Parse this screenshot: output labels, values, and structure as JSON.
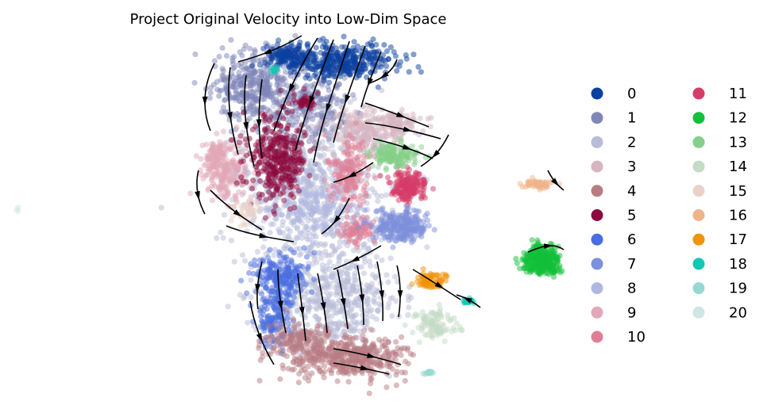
{
  "chart_data": {
    "type": "scatter",
    "title": "Project Original Velocity into Low-Dim Space",
    "xlabel": "",
    "ylabel": "",
    "axes_visible": false,
    "grid": false,
    "overlay": "velocity streamlines (black arrows)",
    "legend_placement": "right, two columns",
    "clusters": [
      {
        "label": "0",
        "color": "#0b3fa0"
      },
      {
        "label": "1",
        "color": "#7f86b8"
      },
      {
        "label": "2",
        "color": "#b8bcd8"
      },
      {
        "label": "3",
        "color": "#d6b5c1"
      },
      {
        "label": "4",
        "color": "#b87c84"
      },
      {
        "label": "5",
        "color": "#8c0a3e"
      },
      {
        "label": "6",
        "color": "#4a6ee0"
      },
      {
        "label": "7",
        "color": "#7d90dc"
      },
      {
        "label": "8",
        "color": "#b0b8e2"
      },
      {
        "label": "9",
        "color": "#e2a8b8"
      },
      {
        "label": "10",
        "color": "#df7f95"
      },
      {
        "label": "11",
        "color": "#d63c68"
      },
      {
        "label": "12",
        "color": "#12c03a"
      },
      {
        "label": "13",
        "color": "#86cf8a"
      },
      {
        "label": "14",
        "color": "#c4dcc5"
      },
      {
        "label": "15",
        "color": "#ead1c8"
      },
      {
        "label": "16",
        "color": "#efb48a"
      },
      {
        "label": "17",
        "color": "#f0940a"
      },
      {
        "label": "18",
        "color": "#12c8b4"
      },
      {
        "label": "19",
        "color": "#96d8d2"
      },
      {
        "label": "20",
        "color": "#cfe6e5"
      }
    ]
  }
}
